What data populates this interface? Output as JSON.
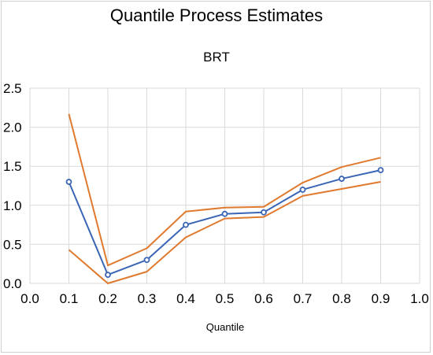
{
  "chart_data": {
    "type": "line",
    "title": "Quantile Process Estimates",
    "subtitle": "BRT",
    "xlabel": "Quantile",
    "ylabel": "",
    "xlim": [
      0.0,
      1.0
    ],
    "ylim": [
      0.0,
      2.5
    ],
    "x_ticks": [
      "0.0",
      "0.1",
      "0.2",
      "0.3",
      "0.4",
      "0.5",
      "0.6",
      "0.7",
      "0.8",
      "0.9",
      "1.0"
    ],
    "y_ticks": [
      "0.0",
      "0.5",
      "1.0",
      "1.5",
      "2.0",
      "2.5"
    ],
    "x": [
      0.1,
      0.2,
      0.3,
      0.4,
      0.5,
      0.6,
      0.7,
      0.8,
      0.9
    ],
    "grid": true,
    "series": [
      {
        "values": [
          2.17,
          0.23,
          0.45,
          0.92,
          0.97,
          0.98,
          1.29,
          1.49,
          1.61
        ],
        "color": "#e07a2f",
        "markers": false
      },
      {
        "values": [
          1.3,
          0.11,
          0.3,
          0.75,
          0.89,
          0.91,
          1.2,
          1.34,
          1.45
        ],
        "color": "#3a66b5",
        "markers": true
      },
      {
        "values": [
          0.43,
          0.0,
          0.15,
          0.59,
          0.83,
          0.85,
          1.12,
          1.21,
          1.3
        ],
        "color": "#e07a2f",
        "markers": false
      }
    ]
  }
}
